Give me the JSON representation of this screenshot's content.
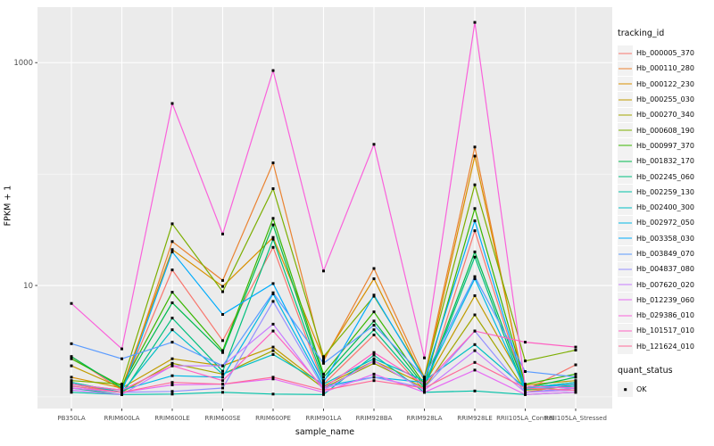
{
  "chart_data": {
    "type": "line",
    "title": "",
    "xlabel": "sample_name",
    "ylabel": "FPKM + 1",
    "y_scale": "log10",
    "ylim": [
      0.786,
      3150
    ],
    "y_ticks": [
      10,
      1000
    ],
    "y_minor": [
      1,
      100
    ],
    "grid": "on",
    "legend_position": "right",
    "legend_title": "tracking_id",
    "quant_legend": {
      "title": "quant_status",
      "label": "OK"
    },
    "point_shape": "filled-square",
    "point_color": "#000000",
    "panel_bg": "#EBEBEB",
    "grid_color": "#FFFFFF",
    "tick_label_color": "#4D4D4D",
    "categories": [
      "PB350LA",
      "RRIM600LA",
      "RRIM600LE",
      "RRIM600SE",
      "RRIM600PE",
      "RRIM901LA",
      "RRIM928BA",
      "RRIM928LA",
      "RRIM928LE",
      "RRII105LA_Control",
      "RRII105LA_Stressed"
    ],
    "series": [
      {
        "name": "Hb_000005_370",
        "color": "#F8766D",
        "values": [
          2.3,
          1.15,
          13.8,
          3.2,
          22,
          1.3,
          3.6,
          1.15,
          31,
          1.15,
          1.94
        ]
      },
      {
        "name": "Hb_000110_280",
        "color": "#EA8331",
        "values": [
          1.3,
          1.1,
          24.8,
          11.1,
          126,
          2.1,
          14.2,
          1.5,
          175,
          1.1,
          1.3
        ]
      },
      {
        "name": "Hb_000122_230",
        "color": "#D89000",
        "values": [
          1.5,
          1.2,
          21,
          9.8,
          27,
          2.2,
          11.5,
          1.4,
          145,
          1.2,
          1.35
        ]
      },
      {
        "name": "Hb_000255_030",
        "color": "#C09B00",
        "values": [
          1.9,
          1.2,
          2.2,
          1.9,
          2.8,
          1.25,
          2.1,
          1.3,
          8.1,
          1.28,
          1.4
        ]
      },
      {
        "name": "Hb_000270_340",
        "color": "#A3A500",
        "values": [
          1.35,
          1.1,
          2.0,
          1.6,
          2.6,
          1.2,
          2.0,
          1.2,
          5.45,
          1.15,
          1.25
        ]
      },
      {
        "name": "Hb_000608_190",
        "color": "#7CAE00",
        "values": [
          1.4,
          1.3,
          35.8,
          8.8,
          74,
          2.3,
          8.0,
          1.5,
          80,
          2.1,
          2.63
        ]
      },
      {
        "name": "Hb_000997_370",
        "color": "#39B600",
        "values": [
          2.2,
          1.25,
          8.7,
          2.6,
          40,
          1.6,
          5.8,
          1.3,
          49,
          1.3,
          1.6
        ]
      },
      {
        "name": "Hb_001832_170",
        "color": "#00BB4E",
        "values": [
          2.3,
          1.2,
          7.0,
          2.5,
          35,
          1.5,
          4.8,
          1.25,
          20,
          1.2,
          1.5
        ]
      },
      {
        "name": "Hb_002245_060",
        "color": "#00BF7D",
        "values": [
          1.2,
          1.05,
          5.1,
          1.7,
          26,
          1.4,
          4.0,
          1.2,
          18,
          1.1,
          1.2
        ]
      },
      {
        "name": "Hb_002259_130",
        "color": "#00C1A7",
        "values": [
          1.1,
          1.05,
          1.06,
          1.1,
          1.06,
          1.05,
          2.37,
          1.1,
          1.13,
          1.05,
          1.1
        ]
      },
      {
        "name": "Hb_002400_300",
        "color": "#00BFC4",
        "values": [
          1.35,
          1.1,
          4.0,
          1.6,
          2.4,
          1.3,
          2.2,
          1.4,
          2.95,
          1.2,
          1.35
        ]
      },
      {
        "name": "Hb_002972_050",
        "color": "#00B8E5",
        "values": [
          1.3,
          1.15,
          1.55,
          1.5,
          8.4,
          1.25,
          1.5,
          1.35,
          11.5,
          1.17,
          1.25
        ]
      },
      {
        "name": "Hb_003358_030",
        "color": "#00ACFC",
        "values": [
          1.25,
          1.1,
          20,
          5.5,
          10.4,
          1.35,
          8.2,
          1.45,
          38,
          1.2,
          1.3
        ]
      },
      {
        "name": "Hb_003849_070",
        "color": "#5A9BFF",
        "values": [
          3.0,
          2.2,
          3.1,
          1.9,
          8.6,
          2.0,
          4.4,
          1.5,
          12,
          1.69,
          1.51
        ]
      },
      {
        "name": "Hb_004837_080",
        "color": "#9590FF",
        "values": [
          1.2,
          1.1,
          1.12,
          1.2,
          7.2,
          1.2,
          1.5,
          1.2,
          3.9,
          1.1,
          1.2
        ]
      },
      {
        "name": "Hb_007620_020",
        "color": "#C77CFF",
        "values": [
          1.15,
          1.05,
          1.9,
          1.9,
          4.5,
          1.15,
          2.1,
          1.15,
          2.6,
          1.1,
          1.15
        ]
      },
      {
        "name": "Hb_012239_060",
        "color": "#E76BF3",
        "values": [
          1.2,
          1.1,
          1.28,
          1.3,
          1.45,
          1.1,
          1.6,
          1.1,
          1.74,
          1.05,
          1.1
        ]
      },
      {
        "name": "Hb_029386_010",
        "color": "#FA62DB",
        "values": [
          6.9,
          2.7,
          430,
          29,
          850,
          13.5,
          185,
          2.24,
          2300,
          1.25,
          1.2
        ]
      },
      {
        "name": "Hb_101517_010",
        "color": "#FF61C2",
        "values": [
          1.3,
          1.15,
          1.9,
          1.4,
          3.9,
          1.2,
          2.5,
          1.3,
          3.9,
          3.1,
          2.8
        ]
      },
      {
        "name": "Hb_121624_010",
        "color": "#FF6A98",
        "values": [
          1.25,
          1.1,
          1.35,
          1.3,
          1.5,
          1.15,
          1.4,
          1.2,
          2.04,
          1.2,
          1.15
        ]
      }
    ]
  }
}
